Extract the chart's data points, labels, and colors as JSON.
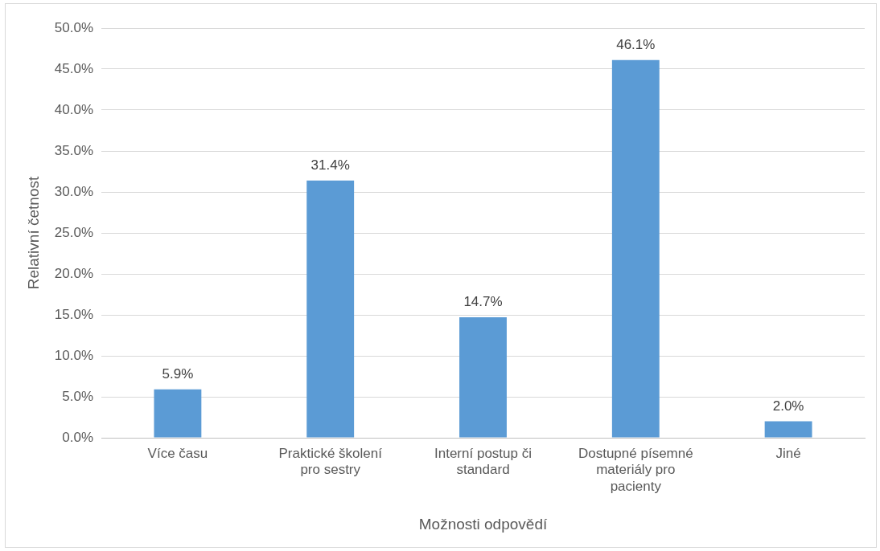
{
  "chart_data": {
    "type": "bar",
    "xlabel": "Možnosti odpovědí",
    "ylabel": "Relativní četnost",
    "categories": [
      "Více času",
      "Praktické školení pro sestry",
      "Interní postup či standard",
      "Dostupné písemné materiály pro pacienty",
      "Jiné"
    ],
    "values": [
      5.9,
      31.4,
      14.7,
      46.1,
      2.0
    ],
    "value_labels": [
      "5.9%",
      "31.4%",
      "14.7%",
      "46.1%",
      "2.0%"
    ],
    "color": "#5b9bd5",
    "ylim": [
      0,
      50
    ],
    "yticks": [
      {
        "value": 0,
        "label": "0.0%"
      },
      {
        "value": 5,
        "label": "5.0%"
      },
      {
        "value": 10,
        "label": "10.0%"
      },
      {
        "value": 15,
        "label": "15.0%"
      },
      {
        "value": 20,
        "label": "20.0%"
      },
      {
        "value": 25,
        "label": "25.0%"
      },
      {
        "value": 30,
        "label": "30.0%"
      },
      {
        "value": 35,
        "label": "35.0%"
      },
      {
        "value": 40,
        "label": "40.0%"
      },
      {
        "value": 45,
        "label": "45.0%"
      },
      {
        "value": 50,
        "label": "50.0%"
      }
    ],
    "grid": "y",
    "legend": false
  }
}
